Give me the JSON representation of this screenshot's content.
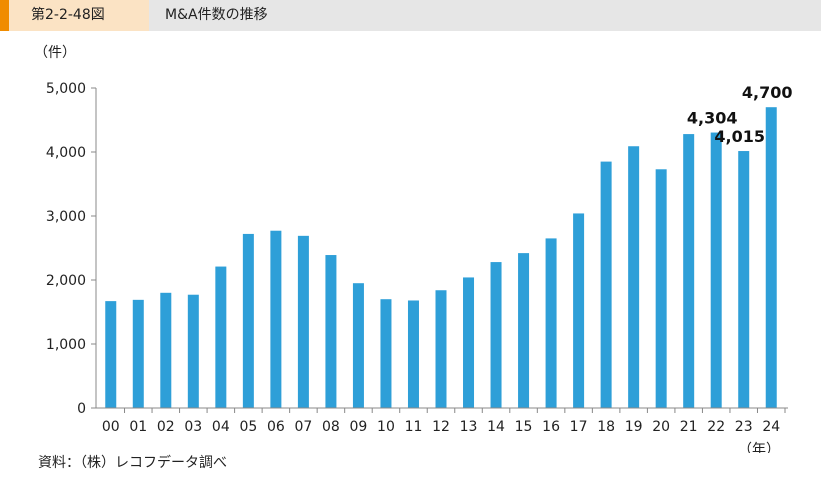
{
  "header": {
    "figure_number": "第2-2-48図",
    "title": "M&A件数の推移"
  },
  "source": "資料：（株）レコフデータ調べ",
  "colors": {
    "bar": "#2e9fd8",
    "header_bg": "#e6e6e6",
    "header_accent": "#f08c00",
    "header_label_bg": "#fbe3c4"
  },
  "chart_data": {
    "type": "bar",
    "ylabel": "（件）",
    "xlabel": "（年）",
    "ylim": [
      0,
      5000
    ],
    "y_ticks": [
      0,
      1000,
      2000,
      3000,
      4000,
      5000
    ],
    "y_tick_labels": [
      "0",
      "1,000",
      "2,000",
      "3,000",
      "4,000",
      "5,000"
    ],
    "grid": false,
    "categories": [
      "00",
      "01",
      "02",
      "03",
      "04",
      "05",
      "06",
      "07",
      "08",
      "09",
      "10",
      "11",
      "12",
      "13",
      "14",
      "15",
      "16",
      "17",
      "18",
      "19",
      "20",
      "21",
      "22",
      "23",
      "24"
    ],
    "values": [
      1670,
      1690,
      1800,
      1770,
      2210,
      2720,
      2770,
      2690,
      2390,
      1950,
      1700,
      1680,
      1840,
      2040,
      2280,
      2420,
      2650,
      3040,
      3850,
      4090,
      3730,
      4280,
      4304,
      4015,
      4700
    ],
    "data_labels": [
      {
        "index": 22,
        "text": "4,304"
      },
      {
        "index": 23,
        "text": "4,015"
      },
      {
        "index": 24,
        "text": "4,700"
      }
    ]
  }
}
